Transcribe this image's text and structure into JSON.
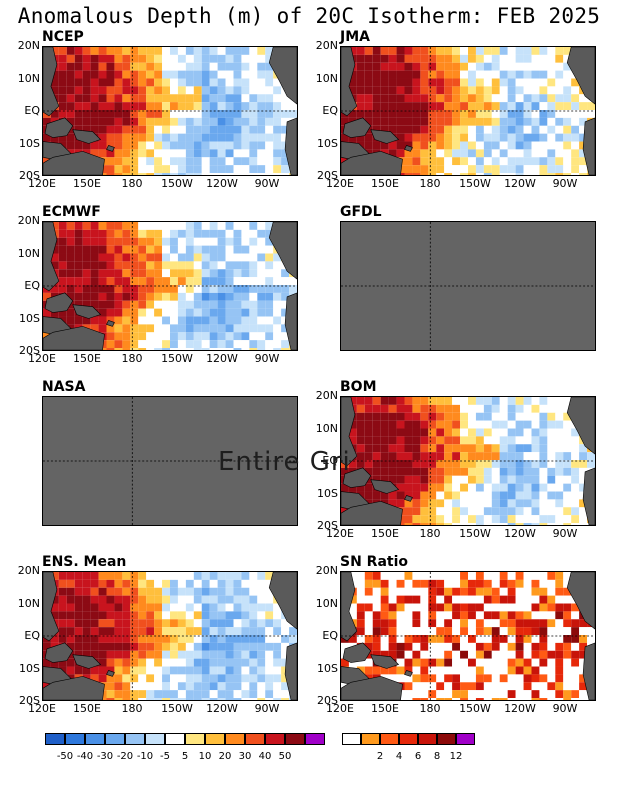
{
  "title": "Anomalous Depth (m) of 20C Isotherm: FEB 2025",
  "watermark": "Entire Gri",
  "y_ticks": [
    "20N",
    "10N",
    "EQ",
    "10S",
    "20S"
  ],
  "x_ticks": [
    "120E",
    "150E",
    "180",
    "150W",
    "120W",
    "90W"
  ],
  "panels": [
    {
      "title": "NCEP",
      "has_data": true
    },
    {
      "title": "JMA",
      "has_data": true
    },
    {
      "title": "ECMWF",
      "has_data": true
    },
    {
      "title": "GFDL",
      "has_data": false
    },
    {
      "title": "NASA",
      "has_data": false
    },
    {
      "title": "BOM",
      "has_data": true
    },
    {
      "title": "ENS. Mean",
      "has_data": true
    },
    {
      "title": "SN Ratio",
      "has_data": true
    }
  ],
  "colorbar_anomaly": {
    "labels": [
      "-50",
      "-40",
      "-30",
      "-20",
      "-10",
      "-5",
      "5",
      "10",
      "20",
      "30",
      "40",
      "50"
    ],
    "colors": [
      "#1f5fc8",
      "#2e78dc",
      "#4a90e6",
      "#6aa8ee",
      "#96c4f4",
      "#c6e2fa",
      "#ffffff",
      "#ffe680",
      "#ffbf3c",
      "#ff8a1e",
      "#f0501e",
      "#c8141e",
      "#8c0a14",
      "#a000c8"
    ]
  },
  "colorbar_sn": {
    "labels": [
      "2",
      "4",
      "6",
      "8",
      "12"
    ],
    "colors": [
      "#ffffff",
      "#ff9a1e",
      "#ff5a14",
      "#e6280a",
      "#c8140a",
      "#8c0a0a",
      "#a000c8"
    ]
  },
  "chart_data": {
    "type": "heatmap",
    "title": "Anomalous Depth (m) of 20C Isotherm: FEB 2025",
    "x_range": [
      "120E",
      "80W"
    ],
    "y_range": [
      "20S",
      "20N"
    ],
    "x_tick_labels": [
      "120E",
      "150E",
      "180",
      "150W",
      "120W",
      "90W"
    ],
    "y_tick_labels": [
      "20N",
      "10N",
      "EQ",
      "10S",
      "20S"
    ],
    "panels": [
      "NCEP",
      "JMA",
      "ECMWF",
      "GFDL",
      "NASA",
      "BOM",
      "ENS. Mean",
      "SN Ratio"
    ],
    "missing_panels": [
      "GFDL",
      "NASA"
    ],
    "anomaly_levels_m": [
      -50,
      -40,
      -30,
      -20,
      -10,
      -5,
      5,
      10,
      20,
      30,
      40,
      50
    ],
    "sn_ratio_levels": [
      2,
      4,
      6,
      8,
      12
    ],
    "pattern": "Positive anomalies (deeper thermocline) in the western equatorial Pacific (120E-180), negative anomalies (shallower thermocline) in the central and eastern Pacific (180-90W)",
    "colors": {
      "land": "#5a5a5a",
      "missing": "#646464"
    }
  }
}
